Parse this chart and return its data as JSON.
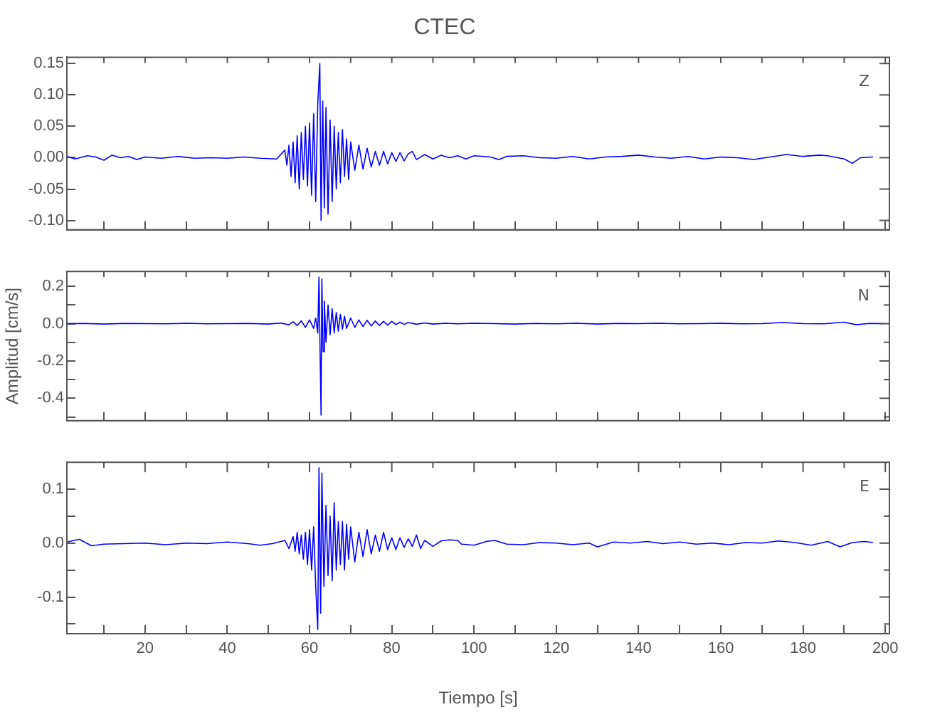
{
  "chart_data": [
    {
      "type": "line",
      "title": "CTEC",
      "xlim": [
        1,
        201
      ],
      "xticks": [
        {
          "value": 10,
          "label": null
        },
        {
          "value": 20,
          "label": null
        },
        {
          "value": 30,
          "label": null
        },
        {
          "value": 40,
          "label": null
        },
        {
          "value": 50,
          "label": null
        },
        {
          "value": 60,
          "label": null
        },
        {
          "value": 70,
          "label": null
        },
        {
          "value": 80,
          "label": null
        },
        {
          "value": 90,
          "label": null
        },
        {
          "value": 100,
          "label": null
        },
        {
          "value": 110,
          "label": null
        },
        {
          "value": 120,
          "label": null
        },
        {
          "value": 130,
          "label": null
        },
        {
          "value": 140,
          "label": null
        },
        {
          "value": 150,
          "label": null
        },
        {
          "value": 160,
          "label": null
        },
        {
          "value": 170,
          "label": null
        },
        {
          "value": 180,
          "label": null
        },
        {
          "value": 190,
          "label": null
        },
        {
          "value": 200,
          "label": null
        }
      ],
      "ylim": [
        -0.115,
        0.16
      ],
      "yticks": [
        {
          "value": -0.1,
          "label": "-0.10"
        },
        {
          "value": -0.05,
          "label": "-0.05"
        },
        {
          "value": 0,
          "label": "0.00"
        },
        {
          "value": 0.05,
          "label": "0.05"
        },
        {
          "value": 0.1,
          "label": "0.10"
        },
        {
          "value": 0.15,
          "label": "0.15"
        }
      ],
      "tick_labels": "y",
      "legend": false,
      "marker": "none",
      "series": [
        {
          "name": "Z",
          "color": "#0000ff",
          "x": [
            1,
            3,
            6,
            8,
            10,
            12,
            14,
            16,
            18,
            20,
            24,
            28,
            32,
            36,
            40,
            44,
            48,
            52,
            54,
            54.5,
            55,
            55.5,
            56,
            56.5,
            57,
            57.5,
            58,
            58.5,
            59,
            59.5,
            60,
            60.5,
            61,
            61.5,
            62,
            62.5,
            62.8,
            63.2,
            63.6,
            64,
            64.5,
            65,
            65.5,
            66,
            66.5,
            67,
            67.5,
            68,
            68.5,
            69,
            69.5,
            70,
            71,
            72,
            73,
            74,
            75,
            76,
            77,
            78,
            79,
            80,
            81,
            82,
            83,
            84,
            85,
            86,
            88,
            90,
            92,
            94,
            96,
            98,
            100,
            104,
            106,
            108,
            112,
            116,
            120,
            124,
            128,
            132,
            136,
            140,
            144,
            148,
            152,
            156,
            160,
            164,
            168,
            172,
            176,
            180,
            184,
            186,
            190,
            192,
            194,
            197
          ],
          "values": [
            0.002,
            -0.002,
            0.003,
            0.001,
            -0.004,
            0.004,
            0.0,
            0.002,
            -0.003,
            0.001,
            -0.001,
            0.002,
            -0.001,
            0.0,
            -0.001,
            0.001,
            -0.001,
            -0.002,
            0.012,
            -0.012,
            0.02,
            -0.03,
            0.025,
            -0.04,
            0.035,
            -0.05,
            0.04,
            -0.035,
            0.05,
            -0.045,
            0.055,
            -0.06,
            0.07,
            -0.07,
            0.085,
            0.15,
            -0.1,
            0.09,
            -0.08,
            0.08,
            -0.09,
            0.06,
            -0.07,
            0.05,
            -0.05,
            0.04,
            -0.04,
            0.045,
            -0.03,
            0.03,
            -0.035,
            0.025,
            -0.02,
            0.02,
            -0.018,
            0.015,
            -0.015,
            0.01,
            -0.012,
            0.01,
            -0.01,
            0.008,
            -0.006,
            0.008,
            -0.005,
            0.006,
            0.01,
            -0.003,
            0.005,
            -0.002,
            0.004,
            0.0,
            0.003,
            -0.002,
            0.003,
            0.001,
            -0.003,
            0.002,
            0.003,
            0.0,
            -0.001,
            0.002,
            -0.002,
            0.001,
            0.002,
            0.004,
            0.001,
            -0.001,
            0.002,
            -0.002,
            0.001,
            0.0,
            -0.003,
            0.001,
            0.005,
            0.002,
            0.004,
            0.003,
            -0.002,
            -0.009,
            0.0,
            0.001
          ]
        }
      ]
    },
    {
      "type": "line",
      "ylabel": "Amplitud [cm/s]",
      "xlim": [
        1,
        201
      ],
      "xticks": [
        {
          "value": 10,
          "label": null
        },
        {
          "value": 20,
          "label": null
        },
        {
          "value": 30,
          "label": null
        },
        {
          "value": 40,
          "label": null
        },
        {
          "value": 50,
          "label": null
        },
        {
          "value": 60,
          "label": null
        },
        {
          "value": 70,
          "label": null
        },
        {
          "value": 80,
          "label": null
        },
        {
          "value": 90,
          "label": null
        },
        {
          "value": 100,
          "label": null
        },
        {
          "value": 110,
          "label": null
        },
        {
          "value": 120,
          "label": null
        },
        {
          "value": 130,
          "label": null
        },
        {
          "value": 140,
          "label": null
        },
        {
          "value": 150,
          "label": null
        },
        {
          "value": 160,
          "label": null
        },
        {
          "value": 170,
          "label": null
        },
        {
          "value": 180,
          "label": null
        },
        {
          "value": 190,
          "label": null
        },
        {
          "value": 200,
          "label": null
        }
      ],
      "ylim": [
        -0.52,
        0.28
      ],
      "yticks": [
        {
          "value": -0.5,
          "label": null
        },
        {
          "value": -0.4,
          "label": "-0.4"
        },
        {
          "value": -0.3,
          "label": null
        },
        {
          "value": -0.2,
          "label": "-0.2"
        },
        {
          "value": -0.1,
          "label": null
        },
        {
          "value": 0,
          "label": "0.0"
        },
        {
          "value": 0.1,
          "label": null
        },
        {
          "value": 0.2,
          "label": "0.2"
        }
      ],
      "tick_labels": "y",
      "legend": false,
      "marker": "none",
      "series": [
        {
          "name": "N",
          "color": "#0000ff",
          "x": [
            1,
            5,
            10,
            15,
            20,
            25,
            30,
            35,
            40,
            45,
            50,
            53,
            55,
            56,
            57,
            58,
            59,
            60,
            61,
            61.5,
            62,
            62.3,
            62.6,
            62.8,
            63,
            63.3,
            63.6,
            64,
            64.5,
            65,
            65.5,
            66,
            66.5,
            67,
            67.5,
            68,
            68.5,
            69,
            70,
            71,
            72,
            73,
            74,
            75,
            76,
            77,
            78,
            79,
            80,
            81,
            82,
            83,
            84,
            86,
            88,
            90,
            93,
            96,
            100,
            105,
            110,
            115,
            120,
            125,
            130,
            135,
            140,
            145,
            150,
            155,
            160,
            165,
            170,
            175,
            180,
            185,
            190,
            193,
            196,
            200
          ],
          "values": [
            0.0,
            0.001,
            -0.002,
            0.001,
            0.0,
            -0.001,
            0.002,
            -0.001,
            0.0,
            0.001,
            -0.002,
            0.003,
            -0.006,
            0.01,
            -0.01,
            0.015,
            -0.02,
            0.02,
            -0.025,
            0.03,
            -0.05,
            0.25,
            -0.2,
            -0.49,
            0.24,
            -0.15,
            0.12,
            -0.1,
            0.1,
            -0.06,
            0.08,
            -0.05,
            0.06,
            -0.04,
            0.05,
            -0.03,
            0.04,
            -0.025,
            0.03,
            -0.02,
            0.02,
            -0.015,
            0.018,
            -0.012,
            0.014,
            -0.01,
            0.012,
            -0.008,
            0.012,
            -0.005,
            0.008,
            -0.004,
            0.006,
            -0.003,
            0.004,
            -0.002,
            0.002,
            -0.001,
            0.002,
            0.0,
            -0.002,
            0.001,
            -0.001,
            0.002,
            -0.002,
            0.001,
            0.0,
            0.002,
            -0.001,
            0.0,
            0.002,
            -0.001,
            0.0,
            0.006,
            0.0,
            -0.001,
            0.008,
            -0.006,
            0.001,
            0.0
          ]
        }
      ]
    },
    {
      "type": "line",
      "xlabel": "Tiempo [s]",
      "xlim": [
        1,
        201
      ],
      "xticks": [
        {
          "value": 10,
          "label": null
        },
        20,
        {
          "value": 30,
          "label": null
        },
        40,
        {
          "value": 50,
          "label": null
        },
        60,
        {
          "value": 70,
          "label": null
        },
        80,
        {
          "value": 90,
          "label": null
        },
        100,
        {
          "value": 110,
          "label": null
        },
        120,
        {
          "value": 130,
          "label": null
        },
        140,
        {
          "value": 150,
          "label": null
        },
        160,
        {
          "value": 170,
          "label": null
        },
        180,
        {
          "value": 190,
          "label": null
        },
        200
      ],
      "ylim": [
        -0.168,
        0.15
      ],
      "yticks": [
        {
          "value": -0.15,
          "label": null
        },
        {
          "value": -0.1,
          "label": "-0.1"
        },
        {
          "value": -0.05,
          "label": null
        },
        {
          "value": 0,
          "label": "0.0"
        },
        {
          "value": 0.05,
          "label": null
        },
        {
          "value": 0.1,
          "label": "0.1"
        }
      ],
      "legend": false,
      "marker": "none",
      "series": [
        {
          "name": "E",
          "color": "#0000ff",
          "x": [
            1,
            4,
            7,
            10,
            15,
            20,
            25,
            30,
            35,
            40,
            45,
            48,
            51,
            54,
            55,
            56,
            56.5,
            57,
            57.5,
            58,
            58.5,
            59,
            59.5,
            60,
            60.5,
            61,
            61.5,
            62,
            62.3,
            62.7,
            63,
            63.5,
            64,
            64.5,
            65,
            65.5,
            66,
            66.5,
            67,
            67.5,
            68,
            68.5,
            69,
            69.5,
            70,
            71,
            72,
            73,
            74,
            75,
            76,
            77,
            78,
            79,
            80,
            81,
            82,
            83,
            84,
            85,
            86,
            87,
            88,
            90,
            92,
            94,
            96,
            97,
            100,
            103,
            105,
            108,
            112,
            116,
            120,
            124,
            128,
            130,
            134,
            138,
            142,
            146,
            150,
            154,
            158,
            162,
            166,
            170,
            174,
            178,
            182,
            186,
            189,
            192,
            195,
            197
          ],
          "values": [
            0.002,
            0.007,
            -0.005,
            -0.002,
            -0.001,
            0.0,
            -0.003,
            0.0,
            -0.001,
            0.002,
            -0.001,
            -0.004,
            -0.001,
            0.005,
            -0.01,
            0.012,
            -0.015,
            0.02,
            -0.02,
            0.015,
            -0.03,
            0.02,
            -0.04,
            0.025,
            -0.05,
            0.03,
            -0.08,
            -0.16,
            0.14,
            -0.13,
            0.13,
            -0.08,
            0.07,
            -0.06,
            0.05,
            -0.07,
            0.075,
            -0.05,
            0.04,
            -0.04,
            0.04,
            -0.05,
            0.035,
            -0.03,
            0.03,
            -0.035,
            0.02,
            -0.025,
            0.025,
            -0.02,
            0.015,
            -0.015,
            0.02,
            -0.012,
            0.01,
            -0.012,
            0.01,
            -0.008,
            0.008,
            -0.006,
            0.015,
            -0.01,
            0.005,
            -0.006,
            0.004,
            0.006,
            0.005,
            -0.002,
            -0.004,
            0.003,
            0.005,
            -0.002,
            -0.003,
            0.001,
            0.0,
            -0.003,
            0.0,
            -0.007,
            0.002,
            0.0,
            0.003,
            -0.001,
            0.002,
            -0.002,
            0.0,
            -0.003,
            0.001,
            0.0,
            0.004,
            0.001,
            -0.004,
            0.003,
            -0.007,
            0.001,
            0.003,
            0.001
          ]
        }
      ]
    }
  ]
}
